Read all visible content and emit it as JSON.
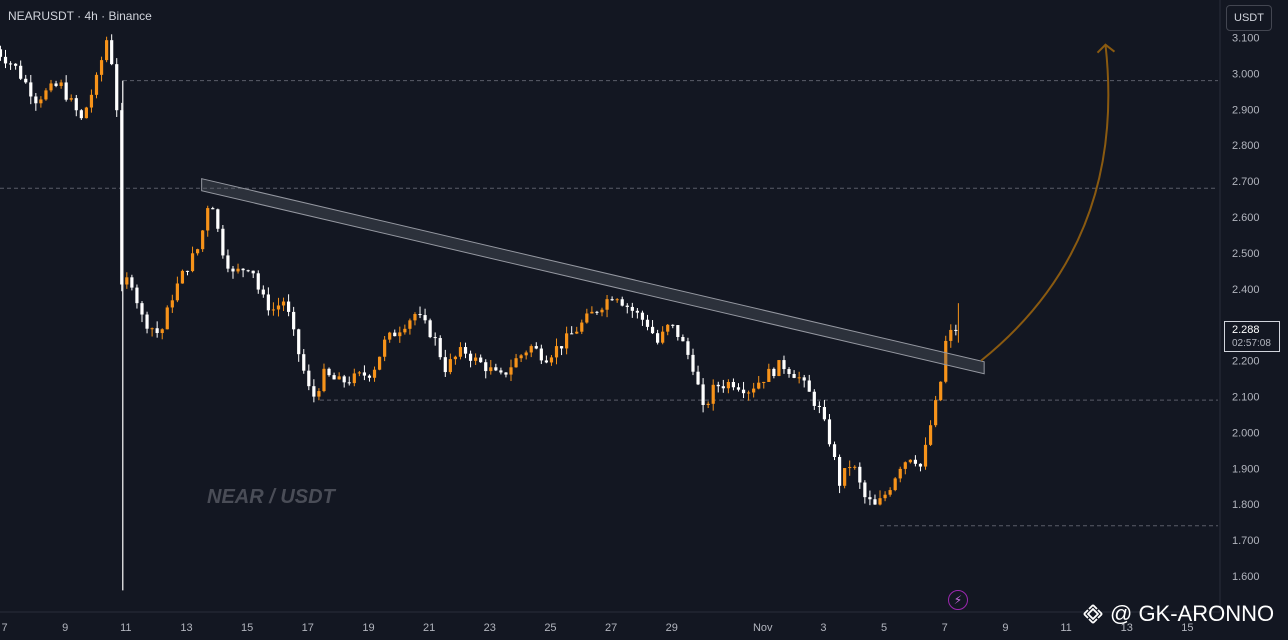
{
  "header": {
    "symbol": "NEARUSDT · 4h · Binance",
    "currency": "USDT"
  },
  "watermark": "NEAR / USDT",
  "last_price": {
    "price": "2.288",
    "countdown": "02:57:08"
  },
  "footer": {
    "brand": "@ GK-ARONNO"
  },
  "colors": {
    "background": "#131722",
    "bullish": "#f7931a",
    "bearish": "#ffffff",
    "arrow": "#8a5a10",
    "grid_dash": "#787b86"
  },
  "icons": {
    "replay": "lightning-icon",
    "brand_logo": "binance-diamond-icon"
  },
  "chart_data": {
    "type": "candlestick",
    "timeframe": "4h",
    "ylim": [
      1.55,
      3.15
    ],
    "y_ticks": [
      "3.100",
      "3.000",
      "2.900",
      "2.800",
      "2.700",
      "2.600",
      "2.500",
      "2.400",
      "2.300",
      "2.200",
      "2.100",
      "2.000",
      "1.900",
      "1.800",
      "1.700",
      "1.600"
    ],
    "x_ticks": [
      {
        "label": "7",
        "d": 7
      },
      {
        "label": "9",
        "d": 9
      },
      {
        "label": "11",
        "d": 11
      },
      {
        "label": "13",
        "d": 13
      },
      {
        "label": "15",
        "d": 15
      },
      {
        "label": "17",
        "d": 17
      },
      {
        "label": "19",
        "d": 19
      },
      {
        "label": "21",
        "d": 21
      },
      {
        "label": "23",
        "d": 23
      },
      {
        "label": "25",
        "d": 25
      },
      {
        "label": "27",
        "d": 27
      },
      {
        "label": "29",
        "d": 29
      },
      {
        "label": "Nov",
        "d": 32
      },
      {
        "label": "3",
        "d": 34
      },
      {
        "label": "5",
        "d": 36
      },
      {
        "label": "7",
        "d": 38
      },
      {
        "label": "9",
        "d": 40
      },
      {
        "label": "11",
        "d": 42
      },
      {
        "label": "13",
        "d": 44
      },
      {
        "label": "15",
        "d": 46
      }
    ],
    "horizontal_levels": [
      2.98,
      2.68,
      2.09,
      1.74
    ],
    "trendline": {
      "from": {
        "d": 13.5,
        "y": 2.69
      },
      "to": {
        "d": 39.3,
        "y": 2.18
      }
    },
    "projection_arrow": {
      "from": {
        "d": 39.2,
        "y": 2.2
      },
      "to": {
        "d": 43.3,
        "y": 3.08
      }
    },
    "ohlc_anchors": [
      [
        6.7,
        3.08
      ],
      [
        7.5,
        3.02
      ],
      [
        8.2,
        2.93
      ],
      [
        9.0,
        2.97
      ],
      [
        9.7,
        2.87
      ],
      [
        10.2,
        2.98
      ],
      [
        10.55,
        3.1
      ],
      [
        10.85,
        2.97
      ],
      [
        11.0,
        2.39
      ],
      [
        11.3,
        2.44
      ],
      [
        11.7,
        2.32
      ],
      [
        12.3,
        2.27
      ],
      [
        12.7,
        2.38
      ],
      [
        13.1,
        2.45
      ],
      [
        13.6,
        2.52
      ],
      [
        13.95,
        2.67
      ],
      [
        14.3,
        2.52
      ],
      [
        14.7,
        2.44
      ],
      [
        15.3,
        2.47
      ],
      [
        15.6,
        2.38
      ],
      [
        16.0,
        2.34
      ],
      [
        16.4,
        2.37
      ],
      [
        16.7,
        2.27
      ],
      [
        17.0,
        2.18
      ],
      [
        17.3,
        2.09
      ],
      [
        17.7,
        2.16
      ],
      [
        18.2,
        2.14
      ],
      [
        18.7,
        2.15
      ],
      [
        19.3,
        2.17
      ],
      [
        19.7,
        2.25
      ],
      [
        20.3,
        2.3
      ],
      [
        20.7,
        2.33
      ],
      [
        21.3,
        2.27
      ],
      [
        21.7,
        2.18
      ],
      [
        22.3,
        2.23
      ],
      [
        22.7,
        2.2
      ],
      [
        23.1,
        2.18
      ],
      [
        23.5,
        2.15
      ],
      [
        24.0,
        2.2
      ],
      [
        24.5,
        2.24
      ],
      [
        25.0,
        2.21
      ],
      [
        25.6,
        2.25
      ],
      [
        26.3,
        2.31
      ],
      [
        26.9,
        2.36
      ],
      [
        27.3,
        2.39
      ],
      [
        27.6,
        2.36
      ],
      [
        28.0,
        2.33
      ],
      [
        28.4,
        2.3
      ],
      [
        28.7,
        2.25
      ],
      [
        29.1,
        2.3
      ],
      [
        29.4,
        2.27
      ],
      [
        29.9,
        2.18
      ],
      [
        30.2,
        2.06
      ],
      [
        30.6,
        2.13
      ],
      [
        31.2,
        2.14
      ],
      [
        31.7,
        2.12
      ],
      [
        32.3,
        2.16
      ],
      [
        32.8,
        2.19
      ],
      [
        33.3,
        2.16
      ],
      [
        33.6,
        2.12
      ],
      [
        34.0,
        2.07
      ],
      [
        34.4,
        1.97
      ],
      [
        34.7,
        1.86
      ],
      [
        35.1,
        1.92
      ],
      [
        35.5,
        1.82
      ],
      [
        35.9,
        1.79
      ],
      [
        36.3,
        1.84
      ],
      [
        36.7,
        1.91
      ],
      [
        37.1,
        1.94
      ],
      [
        37.4,
        1.9
      ],
      [
        37.7,
        2.02
      ],
      [
        38.0,
        2.12
      ],
      [
        38.2,
        2.25
      ],
      [
        38.45,
        2.288
      ]
    ]
  }
}
